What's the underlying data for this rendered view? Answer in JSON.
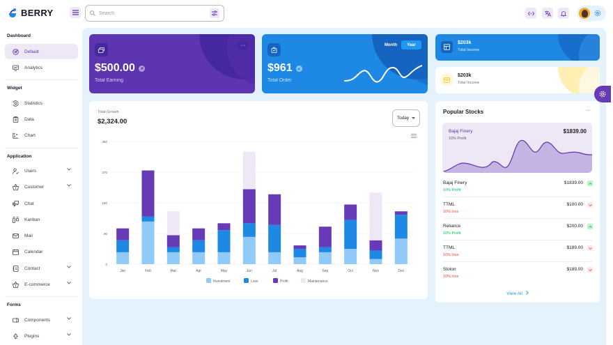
{
  "brand": {
    "name": "BERRY"
  },
  "search": {
    "placeholder": "Search"
  },
  "sidebar": {
    "sections": [
      {
        "title": "Dashboard",
        "items": [
          {
            "label": "Default",
            "icon": "dashboard-icon",
            "active": true
          },
          {
            "label": "Analytics",
            "icon": "device-analytics-icon"
          }
        ]
      },
      {
        "title": "Widget",
        "items": [
          {
            "label": "Statistics",
            "icon": "chart-arcs-icon"
          },
          {
            "label": "Data",
            "icon": "clipboard-list-icon"
          },
          {
            "label": "Chart",
            "icon": "chart-dots-icon"
          }
        ]
      },
      {
        "title": "Application",
        "items": [
          {
            "label": "Users",
            "icon": "user-check-icon",
            "expandable": true
          },
          {
            "label": "Customer",
            "icon": "basket-icon",
            "expandable": true
          },
          {
            "label": "Chat",
            "icon": "messages-icon"
          },
          {
            "label": "Kanban",
            "icon": "layout-kanban-icon"
          },
          {
            "label": "Mail",
            "icon": "mail-icon"
          },
          {
            "label": "Calendar",
            "icon": "calendar-icon"
          },
          {
            "label": "Contact",
            "icon": "contact-card-icon",
            "expandable": true
          },
          {
            "label": "E-commerce",
            "icon": "e-commerce-basket-icon",
            "expandable": true
          }
        ]
      },
      {
        "title": "Forms",
        "items": [
          {
            "label": "Components",
            "icon": "forms-icon",
            "expandable": true
          },
          {
            "label": "Plugins",
            "icon": "plugins-icon",
            "expandable": true
          }
        ]
      }
    ]
  },
  "cards": {
    "earning": {
      "amount": "$500.00",
      "label": "Total Earning",
      "more": "···"
    },
    "order": {
      "amount": "$961",
      "label": "Total Order",
      "toggle_month": "Month",
      "toggle_year": "Year",
      "selected": "Year"
    },
    "income_dark": {
      "value": "$203k",
      "label": "Total Income"
    },
    "income_light": {
      "value": "$203k",
      "label": "Total Income"
    }
  },
  "growth": {
    "label": "Total Growth",
    "value": "$2,324.00",
    "period": "Today"
  },
  "chart_data": {
    "type": "bar",
    "stacked": true,
    "categories": [
      "Jan",
      "Feb",
      "Mar",
      "Apr",
      "May",
      "Jun",
      "Jul",
      "Aug",
      "Sep",
      "Oct",
      "Nov",
      "Dec"
    ],
    "series": [
      {
        "name": "Investment",
        "color": "#90caf9",
        "values": [
          35,
          125,
          35,
          35,
          35,
          80,
          35,
          20,
          35,
          45,
          15,
          75
        ]
      },
      {
        "name": "Loss",
        "color": "#1e88e5",
        "values": [
          35,
          15,
          15,
          35,
          65,
          40,
          80,
          25,
          15,
          85,
          25,
          70
        ]
      },
      {
        "name": "Profit",
        "color": "#673ab7",
        "values": [
          35,
          135,
          35,
          35,
          20,
          100,
          90,
          10,
          60,
          45,
          30,
          10
        ]
      },
      {
        "name": "Maintenance",
        "color": "#ede7f6",
        "values": [
          0,
          0,
          70,
          0,
          0,
          110,
          0,
          0,
          0,
          0,
          140,
          0
        ]
      }
    ],
    "yticks": [
      0,
      90,
      180,
      270,
      360
    ],
    "ylim": [
      0,
      360
    ],
    "grid": true,
    "legend": "bottom"
  },
  "stocks": {
    "title": "Popular Stocks",
    "more": "···",
    "hero": {
      "name": "Bajaj Finery",
      "sub": "10% Profit",
      "price": "$1839.00"
    },
    "rows": [
      {
        "name": "Bajaj Finery",
        "sub": "10% Profit",
        "price": "$1839.00",
        "trend": "up"
      },
      {
        "name": "TTML",
        "sub": "10% loss",
        "price": "$100.00",
        "trend": "down"
      },
      {
        "name": "Reliance",
        "sub": "10% Profit",
        "price": "$200.00",
        "trend": "up"
      },
      {
        "name": "TTML",
        "sub": "10% loss",
        "price": "$189.00",
        "trend": "down"
      },
      {
        "name": "Stolon",
        "sub": "10% loss",
        "price": "$189.00",
        "trend": "down"
      }
    ],
    "view_all": "View All"
  },
  "colors": {
    "primary": "#5e35b1",
    "secondary": "#1e88e5",
    "success": "#00c853",
    "error": "#f44336",
    "bg": "#e3f2fd"
  }
}
